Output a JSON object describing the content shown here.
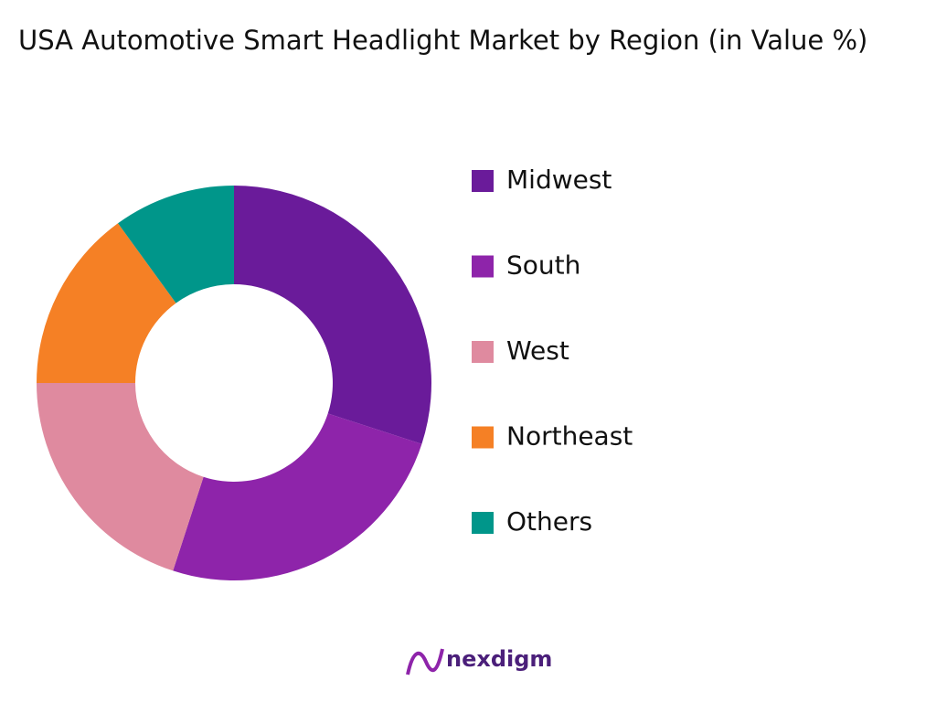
{
  "chart_data": {
    "type": "pie",
    "title": "USA Automotive Smart Headlight Market by Region (in Value %)",
    "categories": [
      "Midwest",
      "South",
      "West",
      "Northeast",
      "Others"
    ],
    "values": [
      30,
      25,
      20,
      15,
      10
    ],
    "colors": [
      "#6a1b9a",
      "#8e24aa",
      "#df8a9f",
      "#f58025",
      "#00968a"
    ],
    "legend": "right"
  },
  "brand": "nexdigm"
}
